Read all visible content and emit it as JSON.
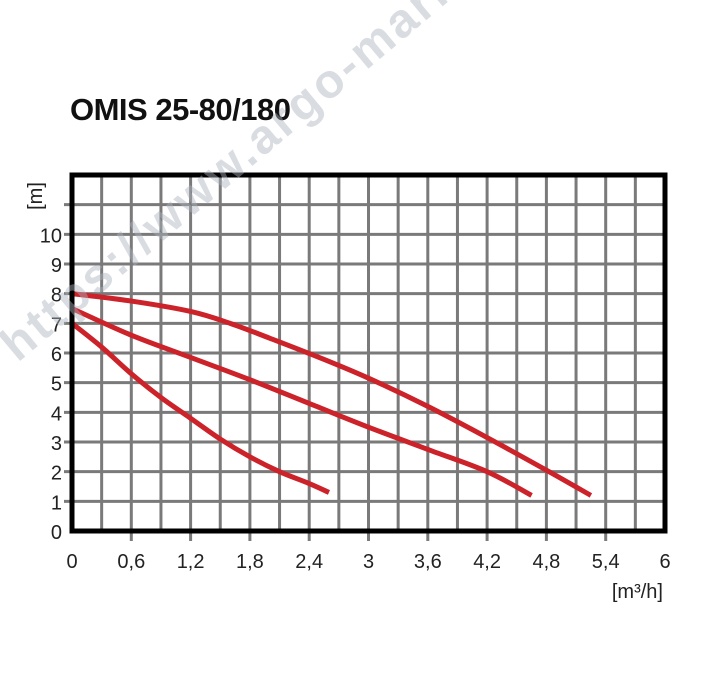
{
  "chart_data": {
    "type": "line",
    "title": "OMIS 25-80/180",
    "xlabel": "[m³/h]",
    "ylabel": "[m]",
    "xlim": [
      0,
      6
    ],
    "ylim": [
      0,
      12
    ],
    "grid": true,
    "x_tick_labels": [
      "0",
      "0,6",
      "1,2",
      "1,8",
      "2,4",
      "3",
      "3,6",
      "4,2",
      "4,8",
      "5,4",
      "6"
    ],
    "y_tick_labels": [
      "0",
      "1",
      "2",
      "3",
      "4",
      "5",
      "6",
      "7",
      "8",
      "9",
      "10"
    ],
    "line_color": "#cc2229",
    "series": [
      {
        "x": [
          0,
          0.6,
          1.2,
          1.6,
          2.0,
          2.5,
          3.0,
          3.6,
          4.2,
          4.8,
          5.25
        ],
        "y": [
          8.0,
          7.75,
          7.4,
          7.0,
          6.5,
          5.85,
          5.15,
          4.2,
          3.15,
          2.05,
          1.2
        ]
      },
      {
        "x": [
          0,
          0.6,
          1.2,
          1.8,
          2.4,
          3.0,
          3.6,
          4.2,
          4.65
        ],
        "y": [
          7.5,
          6.6,
          5.85,
          5.1,
          4.3,
          3.5,
          2.75,
          2.0,
          1.2
        ]
      },
      {
        "x": [
          0,
          0.3,
          0.6,
          0.9,
          1.2,
          1.5,
          1.8,
          2.1,
          2.4,
          2.6
        ],
        "y": [
          7.0,
          6.2,
          5.3,
          4.5,
          3.8,
          3.1,
          2.5,
          2.0,
          1.6,
          1.3
        ]
      }
    ]
  },
  "watermark": "https://www.argo-market.com"
}
